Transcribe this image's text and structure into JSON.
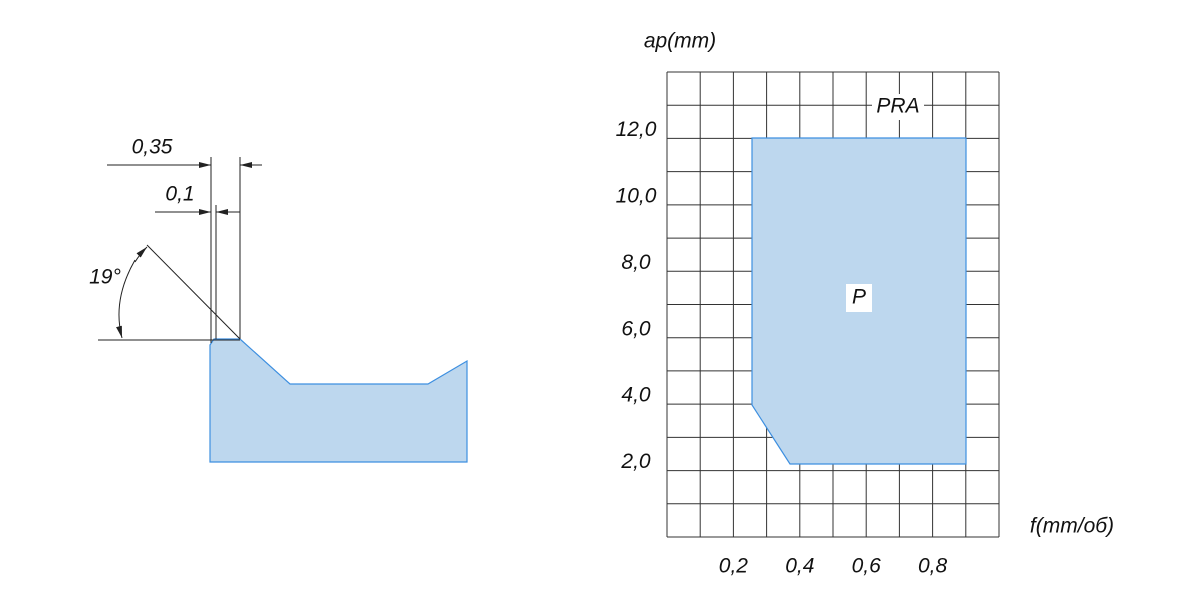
{
  "profile": {
    "dimensions": [
      "0,35",
      "0,1"
    ],
    "angle": "19°"
  },
  "chart": {
    "y_label": "ap(mm)",
    "x_label": "f(mm/об)",
    "yticks": [
      "12,0",
      "10,0",
      "8,0",
      "6,0",
      "4,0",
      "2,0"
    ],
    "xticks": [
      "0,2",
      "0,4",
      "0,6",
      "0,8"
    ],
    "chipbreaker": "PRA",
    "region_label": "P"
  }
}
